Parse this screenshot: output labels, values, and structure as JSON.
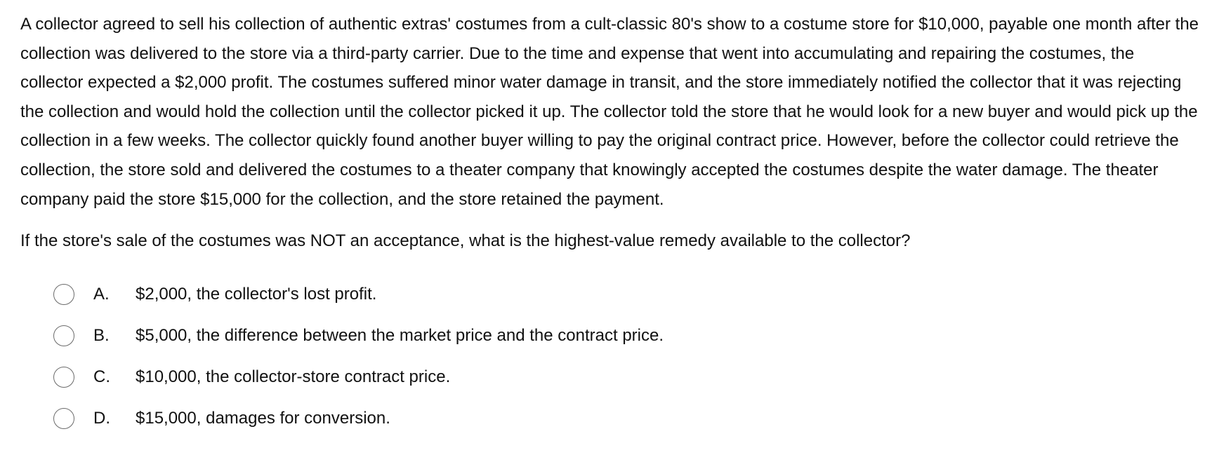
{
  "passage": "A collector agreed to sell his collection of authentic extras' costumes from a cult-classic 80's show to a costume store for $10,000, payable one month after the collection was delivered to the store via a third-party carrier.  Due to the time and expense that went into accumulating and repairing the costumes, the collector expected a $2,000 profit.  The costumes suffered minor water damage in transit, and the store immediately notified the collector that it was rejecting the collection and would hold the collection until the collector picked it up.  The collector told the store that he would look for a new buyer and would pick up the collection in a few weeks.  The collector quickly found another buyer willing to pay the original contract price.  However, before the collector could retrieve the collection, the store sold and delivered the costumes to a theater company that knowingly accepted the costumes despite the water damage.  The theater company paid the store $15,000 for the collection, and the store retained the payment.",
  "question": "If the store's sale of the costumes was NOT an acceptance, what is the highest-value remedy available to the collector?",
  "options": [
    {
      "letter": "A.",
      "text": "$2,000, the collector's lost profit."
    },
    {
      "letter": "B.",
      "text": "$5,000, the difference between the market price and the contract price."
    },
    {
      "letter": "C.",
      "text": "$10,000, the collector-store contract price."
    },
    {
      "letter": "D.",
      "text": "$15,000, damages for conversion."
    }
  ]
}
